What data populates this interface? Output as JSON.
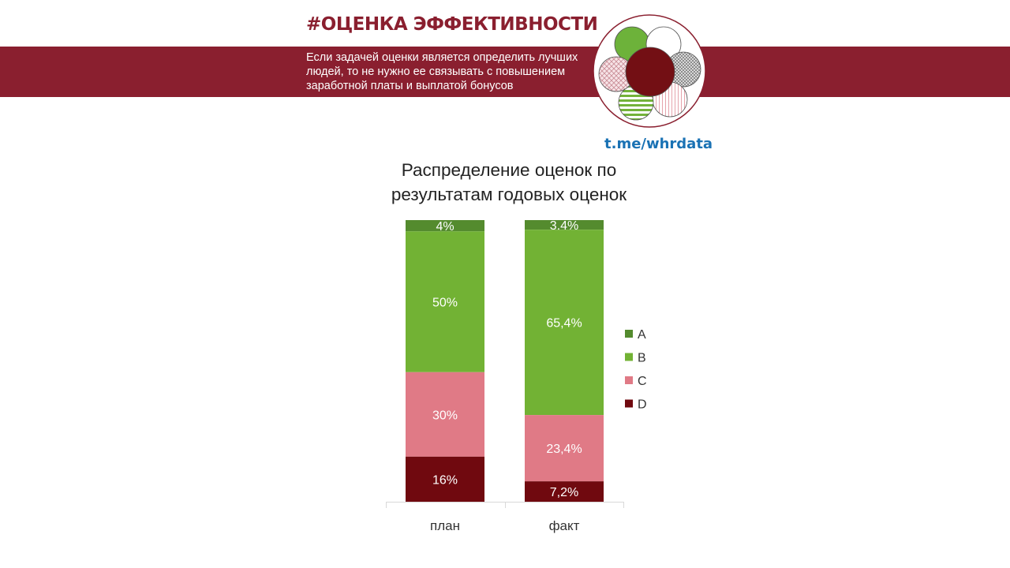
{
  "header": {
    "hashtag": "#ОЦЕНКА ЭФФЕКТИВНОСТИ",
    "description_lines": [
      "Если задачей оценки является определить лучших",
      "людей, то не нужно ее связывать с повышением",
      "заработной платы и выплатой бонусов"
    ],
    "channel": "t.me/whrdata"
  },
  "colors": {
    "brand": "#8a1f2f",
    "link": "#1a72b4",
    "A": "#548b2e",
    "B": "#72b234",
    "C": "#e07a86",
    "D": "#70090f"
  },
  "chart_data": {
    "type": "bar",
    "stacked": true,
    "title_lines": [
      "Распределение оценок по",
      "результатам годовых оценок"
    ],
    "categories": [
      "план",
      "факт"
    ],
    "series": [
      {
        "name": "A",
        "values": [
          4,
          3.4
        ],
        "labels": [
          "4%",
          "3,4%"
        ]
      },
      {
        "name": "B",
        "values": [
          50,
          65.4
        ],
        "labels": [
          "50%",
          "65,4%"
        ]
      },
      {
        "name": "C",
        "values": [
          30,
          23.4
        ],
        "labels": [
          "30%",
          "23,4%"
        ]
      },
      {
        "name": "D",
        "values": [
          16,
          7.2
        ],
        "labels": [
          "16%",
          "7,2%"
        ]
      }
    ],
    "ylim": [
      0,
      100
    ],
    "grid": false,
    "legend": "right"
  }
}
